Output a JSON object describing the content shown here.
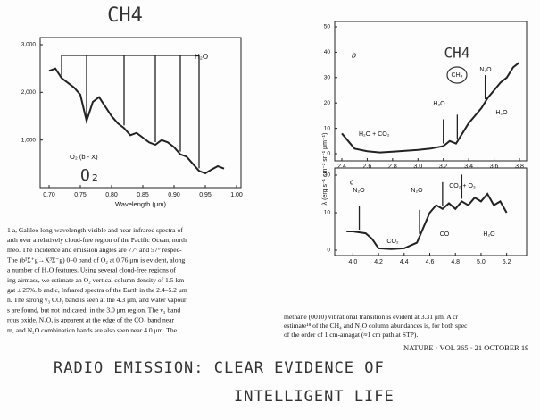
{
  "handwritten_title": "CH4",
  "figure_ylabel": "Iλ (erg s⁻¹ cm⁻² sr⁻¹ μm⁻¹)",
  "chart_data": [
    {
      "type": "line",
      "xlabel": "Wavelength (μm)",
      "color": "#222222",
      "x": [
        0.7,
        0.71,
        0.72,
        0.73,
        0.74,
        0.75,
        0.76,
        0.77,
        0.78,
        0.79,
        0.8,
        0.81,
        0.82,
        0.83,
        0.84,
        0.85,
        0.86,
        0.87,
        0.88,
        0.89,
        0.9,
        0.91,
        0.92,
        0.93,
        0.94,
        0.95,
        0.96,
        0.97,
        0.98
      ],
      "values": [
        2450,
        2500,
        2300,
        2200,
        2100,
        1950,
        1400,
        1800,
        1900,
        1700,
        1500,
        1350,
        1250,
        1100,
        1150,
        1050,
        950,
        900,
        1000,
        950,
        850,
        700,
        650,
        500,
        350,
        300,
        380,
        450,
        400
      ],
      "xlim": [
        0.7,
        1.0
      ],
      "xticks": [
        {
          "value": 0.7,
          "label": "0.70"
        },
        {
          "value": 0.75,
          "label": "0.75"
        },
        {
          "value": 0.8,
          "label": "0.80"
        },
        {
          "value": 0.85,
          "label": "0.85"
        },
        {
          "value": 0.9,
          "label": "0.90"
        },
        {
          "value": 0.95,
          "label": "0.95"
        },
        {
          "value": 1.0,
          "label": "1.00"
        }
      ],
      "ylim": [
        0,
        3000
      ],
      "yticks": [
        {
          "value": 1000,
          "label": "1,000"
        },
        {
          "value": 2000,
          "label": "2,000"
        },
        {
          "value": 3000,
          "label": "3,000"
        }
      ],
      "band_markers": [
        0.72,
        0.76,
        0.82,
        0.87,
        0.91,
        0.94
      ],
      "annotations": [
        "H₂O",
        "O₂ (b - X)",
        "O₂"
      ]
    },
    {
      "type": "line",
      "color": "#222222",
      "x": [
        2.4,
        2.45,
        2.5,
        2.6,
        2.7,
        2.8,
        3.0,
        3.1,
        3.2,
        3.25,
        3.3,
        3.35,
        3.4,
        3.45,
        3.5,
        3.55,
        3.6,
        3.65,
        3.7,
        3.75,
        3.8
      ],
      "values": [
        8,
        5,
        2,
        1,
        0.5,
        0.8,
        1.5,
        2,
        3,
        5,
        4,
        8,
        12,
        15,
        18,
        22,
        25,
        28,
        30,
        34,
        36
      ],
      "xlim": [
        2.4,
        3.8
      ],
      "xticks": [
        2.4,
        2.6,
        2.8,
        {
          "value": 3.0,
          "label": "3.0"
        },
        3.2,
        3.4,
        3.6,
        3.8
      ],
      "ylim": [
        0,
        50
      ],
      "yticks": [
        0,
        10,
        20,
        30,
        40,
        50
      ],
      "band_markers": [
        3.2,
        3.31,
        3.53
      ],
      "annotations": [
        "b",
        "H₂O + CO₂",
        "H₂O",
        "CH₄",
        "N₂O",
        "H₂O",
        "CH4"
      ]
    },
    {
      "type": "line",
      "color": "#222222",
      "x": [
        3.95,
        4.0,
        4.1,
        4.15,
        4.2,
        4.3,
        4.4,
        4.5,
        4.55,
        4.6,
        4.65,
        4.7,
        4.75,
        4.8,
        4.85,
        4.9,
        4.95,
        5.0,
        5.05,
        5.1,
        5.15,
        5.2
      ],
      "values": [
        5,
        5,
        4.5,
        3,
        0.5,
        0.3,
        0.5,
        2,
        6,
        10,
        12,
        11,
        12.5,
        11,
        13,
        12,
        14,
        13,
        15,
        12,
        13,
        10
      ],
      "xlim": [
        3.9,
        5.3
      ],
      "xticks": [
        {
          "value": 4.0,
          "label": "4.0"
        },
        4.2,
        4.4,
        4.6,
        4.8,
        {
          "value": 5.0,
          "label": "5.0"
        },
        5.2
      ],
      "ylim": [
        0,
        20
      ],
      "yticks": [
        0,
        10,
        20
      ],
      "band_markers": [
        4.05,
        4.52,
        4.7,
        4.85
      ],
      "annotations": [
        "c",
        "N₂O",
        "CO₂",
        "N₂O",
        "CO₂ + O₃",
        "CO",
        "H₂O"
      ]
    }
  ],
  "caption": [
    "1 a, Galileo long-wavelength-visible and near-infrared spectra of",
    "arth over a relatively cloud-free region of the Pacific Ocean, north",
    "meo. The incidence and emission angles are 77° and 57° respec-",
    "The (b¹Σ⁺g→X³Σ⁻g) 0–0 band of O₂ at 0.76 μm is evident, along",
    "a number of H₂O features. Using several cloud-free regions of",
    "ing airmass, we estimate an O₂ vertical column density of 1.5 km-",
    "gat ± 25%. b and c, Infrared spectra of the Earth in the 2.4–5.2 μm",
    "n. The strong ν₃ CO₂ band is seen at the 4.3 μm, and water vapour",
    "s are found, but not indicated, in the 3.0 μm region. The ν₃ band",
    "rous oxide, N₂O, is apparent at the edge of the CO₂ band near",
    "m, and N₂O combination bands are also seen near 4.0 μm. The"
  ],
  "right_text": [
    "methane (0010) vibrational transition is evident at 3.31 μm. A cr",
    "estimate¹⁸ of the CH₄ and N₂O column abundances is, for both spec",
    "of the order of 1 cm-amagat (≈1 cm path at STP)."
  ],
  "footer": "NATURE · VOL 365 · 21 OCTOBER 19",
  "handwritten_note": [
    "RADIO EMISSION:  CLEAR  EVIDENCE  OF",
    "INTELLIGENT  LIFE"
  ]
}
